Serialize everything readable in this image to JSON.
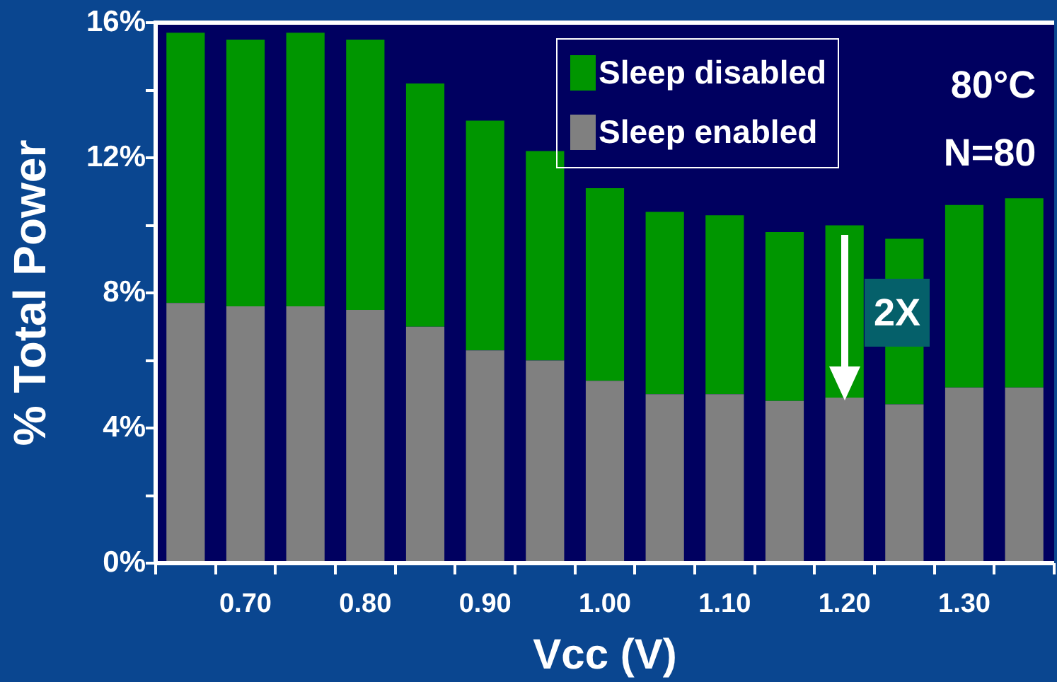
{
  "chart_data": {
    "type": "bar",
    "stacked": true,
    "ylabel": "% Total Power",
    "xlabel": "Vcc (V)",
    "categories": [
      null,
      "0.70",
      null,
      "0.80",
      null,
      "0.90",
      null,
      "1.00",
      null,
      "1.10",
      null,
      "1.20",
      null,
      "1.30",
      null
    ],
    "series": [
      {
        "name": "Sleep enabled",
        "color": "#808080",
        "values": [
          7.7,
          7.6,
          7.6,
          7.5,
          7.0,
          6.3,
          6.0,
          5.4,
          5.0,
          5.0,
          4.8,
          4.9,
          4.7,
          5.2,
          5.2
        ]
      },
      {
        "name": "Sleep disabled",
        "color": "#009600",
        "values": [
          8.0,
          7.9,
          8.1,
          8.0,
          7.2,
          6.8,
          6.2,
          5.7,
          5.4,
          5.3,
          5.0,
          5.1,
          4.9,
          5.4,
          5.6
        ]
      }
    ],
    "ylim": [
      0,
      16
    ],
    "yticks": [
      {
        "value": 0,
        "label": "0%"
      },
      {
        "value": 2,
        "label": null
      },
      {
        "value": 4,
        "label": "4%"
      },
      {
        "value": 6,
        "label": null
      },
      {
        "value": 8,
        "label": "8%"
      },
      {
        "value": 10,
        "label": null
      },
      {
        "value": 12,
        "label": "12%"
      },
      {
        "value": 14,
        "label": null
      },
      {
        "value": 16,
        "label": "16%"
      }
    ],
    "grid": false,
    "legend": "top right",
    "annotations": [
      "80°C",
      "N=80",
      "2X"
    ]
  }
}
